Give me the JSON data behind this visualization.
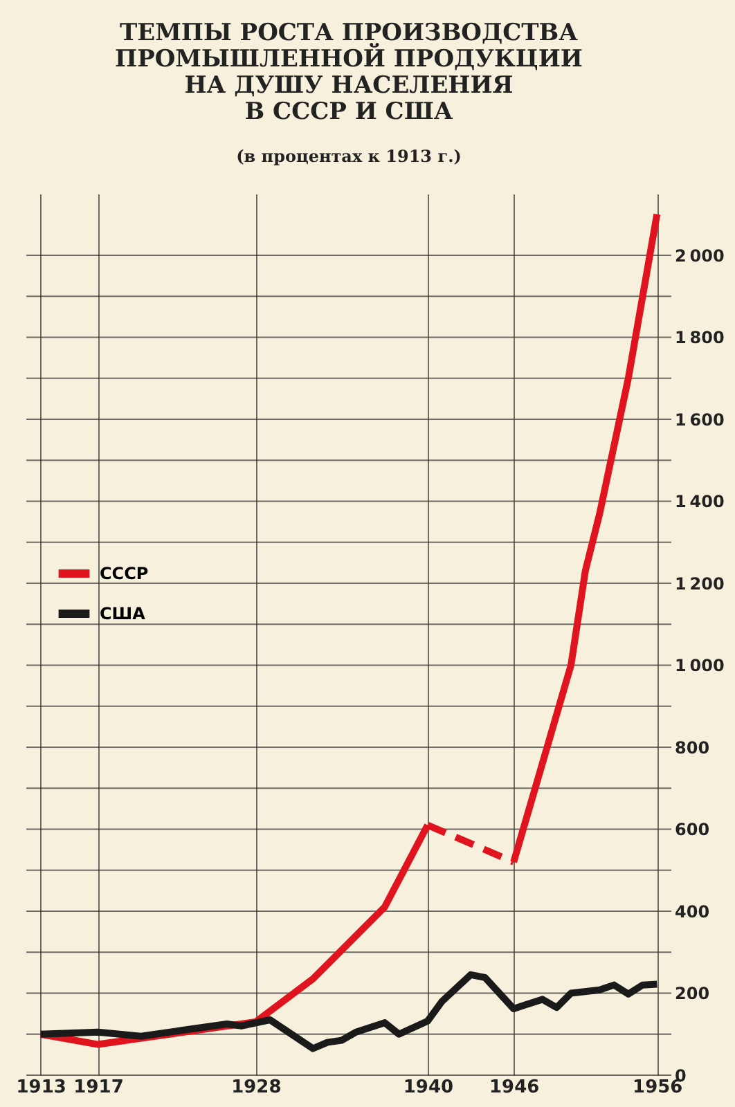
{
  "chart_data": {
    "type": "line",
    "title": "ТЕМПЫ РОСТА ПРОИЗВОДСТВА\nПРОМЫШЛЕННОЙ ПРОДУКЦИИ\nНА ДУШУ НАСЕЛЕНИЯ\nВ СССР И США",
    "subtitle": "(в процентах к 1913 г.)",
    "series": [
      {
        "name": "СССР",
        "color": "#e0141e",
        "x": [
          1913,
          1917,
          1928,
          1932,
          1937,
          1940
        ],
        "values": [
          100,
          75,
          130,
          235,
          410,
          610
        ]
      },
      {
        "color": "#e0141e",
        "line_style": "dashed",
        "x": [
          1940,
          1946
        ],
        "values": [
          610,
          520
        ]
      },
      {
        "color": "#e0141e",
        "x": [
          1946,
          1950,
          1951,
          1952,
          1954,
          1956
        ],
        "values": [
          520,
          1000,
          1230,
          1370,
          1700,
          2100
        ]
      },
      {
        "name": "США",
        "color": "#1a1a1a",
        "x": [
          1913,
          1917,
          1920,
          1923,
          1926,
          1927,
          1929,
          1932,
          1933,
          1934,
          1935,
          1937,
          1938,
          1940,
          1941,
          1943,
          1944,
          1946,
          1948,
          1949,
          1950,
          1952,
          1953,
          1954,
          1955,
          1956
        ],
        "values": [
          100,
          105,
          95,
          110,
          125,
          120,
          135,
          65,
          80,
          85,
          105,
          128,
          100,
          132,
          180,
          245,
          238,
          162,
          185,
          165,
          200,
          208,
          220,
          198,
          220,
          222
        ]
      }
    ],
    "xlim": [
      1912,
      1957
    ],
    "xticks": [
      1913,
      1917,
      1928,
      1940,
      1946,
      1956
    ],
    "ylim": [
      0,
      2150
    ],
    "yticks": [
      0,
      {
        "value": 100,
        "label": null
      },
      200,
      {
        "value": 300,
        "label": null
      },
      400,
      {
        "value": 500,
        "label": null
      },
      600,
      {
        "value": 700,
        "label": null
      },
      800,
      {
        "value": 900,
        "label": null
      },
      1000,
      {
        "value": 1100,
        "label": null
      },
      1200,
      {
        "value": 1300,
        "label": null
      },
      1400,
      {
        "value": 1500,
        "label": null
      },
      1600,
      {
        "value": 1700,
        "label": null
      },
      1800,
      {
        "value": 1900,
        "label": null
      },
      2000
    ],
    "grid": true,
    "legend": "left",
    "line_style": "solid",
    "marker": "none"
  }
}
